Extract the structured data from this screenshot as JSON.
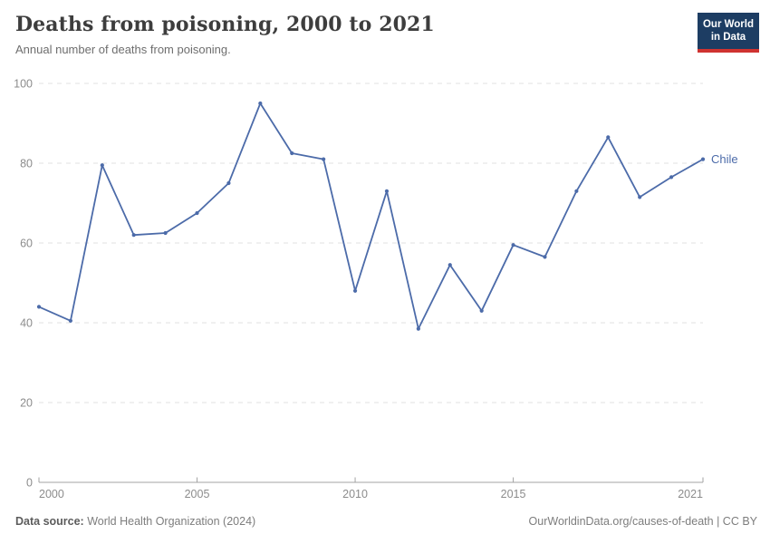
{
  "header": {
    "title": "Deaths from poisoning, 2000 to 2021",
    "subtitle": "Annual number of deaths from poisoning."
  },
  "logo": {
    "line1": "Our World",
    "line2": "in Data",
    "bg_color": "#1d3d63",
    "accent_color": "#cf3331"
  },
  "chart_data": {
    "type": "line",
    "title": "Deaths from poisoning, 2000 to 2021",
    "subtitle": "Annual number of deaths from poisoning.",
    "x": [
      2000,
      2001,
      2002,
      2003,
      2004,
      2005,
      2006,
      2007,
      2008,
      2009,
      2010,
      2011,
      2012,
      2013,
      2014,
      2015,
      2016,
      2017,
      2018,
      2019,
      2020,
      2021
    ],
    "series": [
      {
        "name": "Chile",
        "color": "#4c6ba9",
        "values": [
          44,
          40.5,
          79.5,
          62,
          62.5,
          67.5,
          75,
          95,
          82.5,
          81,
          48,
          73,
          38.5,
          54.5,
          43,
          59.5,
          56.5,
          73,
          86.5,
          71.5,
          76.5,
          81
        ]
      }
    ],
    "xlabel": "",
    "ylabel": "",
    "xlim": [
      2000,
      2021
    ],
    "ylim": [
      0,
      100
    ],
    "yticks": [
      0,
      20,
      40,
      60,
      80,
      100
    ],
    "xticks": [
      2000,
      2005,
      2010,
      2015,
      2021
    ],
    "grid": "horizontal-dashed",
    "legend_position": "end-of-line-label",
    "entity_label": "Chile"
  },
  "chart_style": {
    "grid_color": "#e0e0e0",
    "axis_color": "#a3a3a3",
    "tick_label_color": "#8c8c8c",
    "line_width": 1.8,
    "marker_radius": 2.1
  },
  "footer": {
    "source_label": "Data source:",
    "source_value": "World Health Organization (2024)",
    "link_text": "OurWorldinData.org/causes-of-death",
    "separator": " | ",
    "license_text": "CC BY"
  }
}
